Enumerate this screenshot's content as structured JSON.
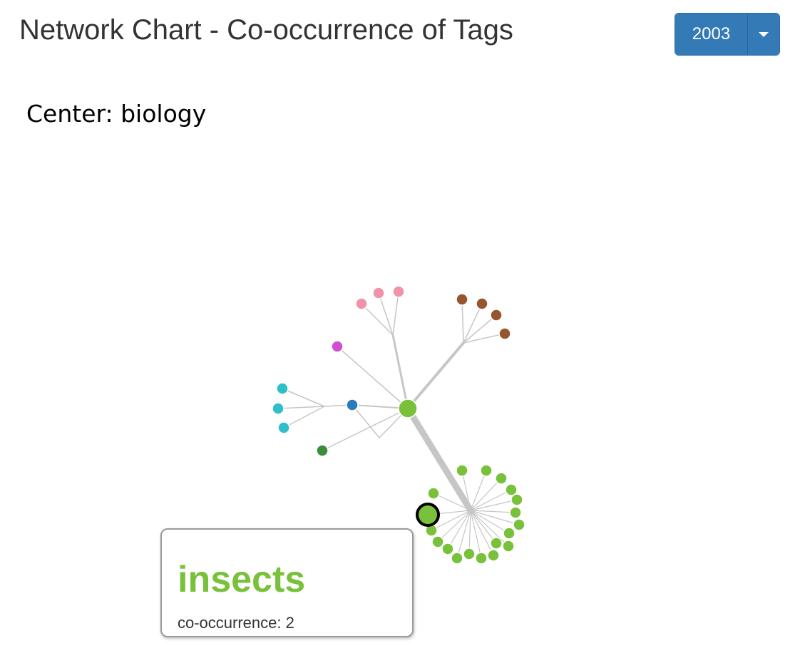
{
  "header": {
    "title": "Network Chart - Co-occurrence of Tags"
  },
  "year_selector": {
    "selected": "2003",
    "toggle_icon": "caret-down-icon",
    "color": "#337ab7"
  },
  "center": {
    "label": "Center: biology"
  },
  "tooltip": {
    "name": "insects",
    "metric": "co-occurrence: 2",
    "name_color": "#79c13a"
  },
  "graph_colors": {
    "link": "#c6c6c6",
    "highlight_stroke": "#000000",
    "node_stroke": "#ffffff"
  }
}
